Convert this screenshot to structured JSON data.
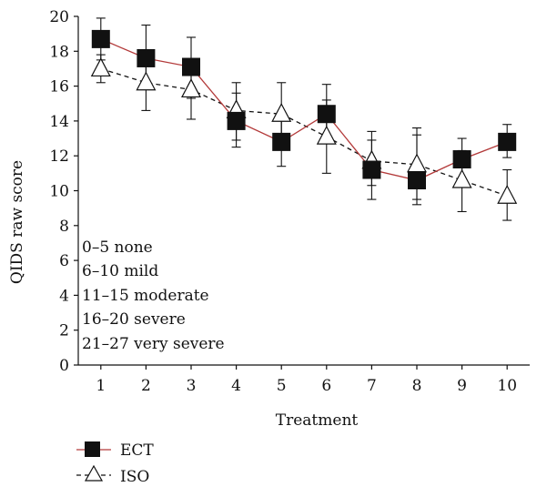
{
  "chart_data": {
    "type": "line",
    "title": "",
    "xlabel": "Treatment",
    "ylabel": "QIDS raw score",
    "xlim": [
      0.5,
      10.5
    ],
    "ylim": [
      0,
      20
    ],
    "x_ticks": [
      1,
      2,
      3,
      4,
      5,
      6,
      7,
      8,
      9,
      10
    ],
    "y_ticks": [
      0,
      2,
      4,
      6,
      8,
      10,
      12,
      14,
      16,
      18,
      20
    ],
    "grid": false,
    "legend_position": "bottom-left",
    "x": [
      1,
      2,
      3,
      4,
      5,
      6,
      7,
      8,
      9,
      10
    ],
    "series": [
      {
        "name": "ECT",
        "marker": "square",
        "line_style": "solid",
        "line_color": "#b33a3a",
        "marker_color": "#111111",
        "values": [
          18.7,
          17.6,
          17.1,
          14.0,
          12.8,
          14.4,
          11.2,
          10.6,
          11.8,
          12.8
        ],
        "error_upper": [
          19.9,
          19.5,
          18.8,
          16.2,
          14.4,
          16.1,
          13.4,
          13.6,
          13.0,
          13.8
        ],
        "error_lower": [
          17.5,
          16.0,
          15.3,
          12.5,
          11.4,
          12.7,
          9.5,
          9.2,
          10.3,
          11.9
        ]
      },
      {
        "name": "ISO",
        "marker": "triangle-open",
        "line_style": "dashed",
        "line_color": "#111111",
        "marker_color": "#111111",
        "values": [
          17.0,
          16.2,
          15.8,
          14.6,
          14.4,
          13.1,
          11.7,
          11.5,
          10.6,
          9.7
        ],
        "error_upper": [
          17.8,
          17.6,
          17.0,
          15.6,
          16.2,
          15.2,
          12.9,
          13.2,
          12.3,
          11.2
        ],
        "error_lower": [
          16.2,
          14.6,
          14.1,
          12.9,
          12.6,
          11.0,
          10.3,
          9.5,
          8.8,
          8.3
        ]
      }
    ],
    "annotations": [
      "0–5 none",
      "6–10 mild",
      "11–15 moderate",
      "16–20 severe",
      "21–27 very severe"
    ]
  },
  "legend": {
    "items": [
      {
        "label": "ECT"
      },
      {
        "label": "ISO"
      }
    ]
  }
}
